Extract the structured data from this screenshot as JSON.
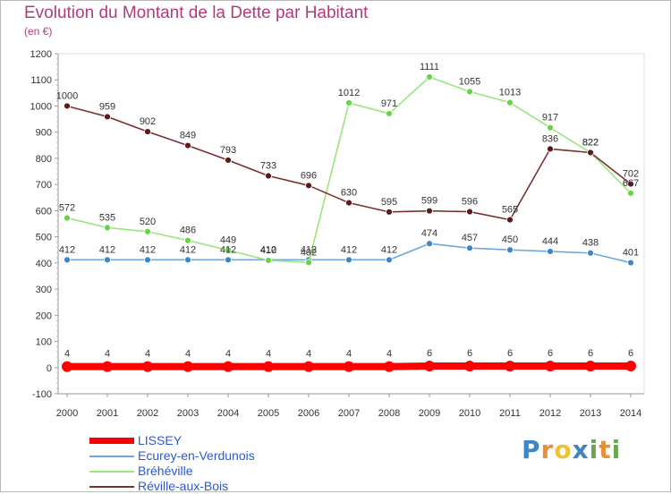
{
  "chart_data": {
    "type": "line",
    "title": "Evolution du Montant de la Dette par Habitant",
    "subtitle": "(en €)",
    "x": [
      "2000",
      "2001",
      "2002",
      "2003",
      "2004",
      "2005",
      "2006",
      "2007",
      "2008",
      "2009",
      "2010",
      "2011",
      "2012",
      "2013",
      "2014"
    ],
    "ylim": [
      -100,
      1200
    ],
    "yticks": [
      -100,
      0,
      100,
      200,
      300,
      400,
      500,
      600,
      700,
      800,
      900,
      1000,
      1100,
      1200
    ],
    "grid": false,
    "legend_position": "bottom-left",
    "series": [
      {
        "name": "LISSEY",
        "color": "#ff0000",
        "point_color": "#ff0000",
        "thick": true,
        "values": [
          4,
          4,
          4,
          4,
          4,
          4,
          4,
          4,
          4,
          6,
          6,
          6,
          6,
          6,
          6
        ]
      },
      {
        "name": "Ecurey-en-Verdunois",
        "color": "#6fa8dc",
        "point_color": "#3d85c6",
        "thick": false,
        "values": [
          412,
          412,
          412,
          412,
          412,
          412,
          412,
          412,
          412,
          474,
          457,
          450,
          444,
          438,
          401
        ]
      },
      {
        "name": "Bréhéville",
        "color": "#9be67a",
        "point_color": "#6ad14a",
        "thick": false,
        "values": [
          572,
          535,
          520,
          486,
          449,
          410,
          402,
          1012,
          971,
          1111,
          1055,
          1013,
          917,
          822,
          667
        ]
      },
      {
        "name": "Réville-aux-Bois",
        "color": "#7a3030",
        "point_color": "#5c1a1a",
        "thick": false,
        "values": [
          1000,
          959,
          902,
          849,
          793,
          733,
          696,
          630,
          595,
          599,
          596,
          565,
          836,
          822,
          702
        ]
      }
    ]
  },
  "logo": {
    "letters": [
      "P",
      "r",
      "o",
      "x",
      "i",
      "t",
      "i"
    ],
    "colors": [
      "#3d85c6",
      "#e69138",
      "#f1c232",
      "#3d85c6",
      "#6aa84f",
      "#e69138",
      "#6aa84f"
    ]
  }
}
